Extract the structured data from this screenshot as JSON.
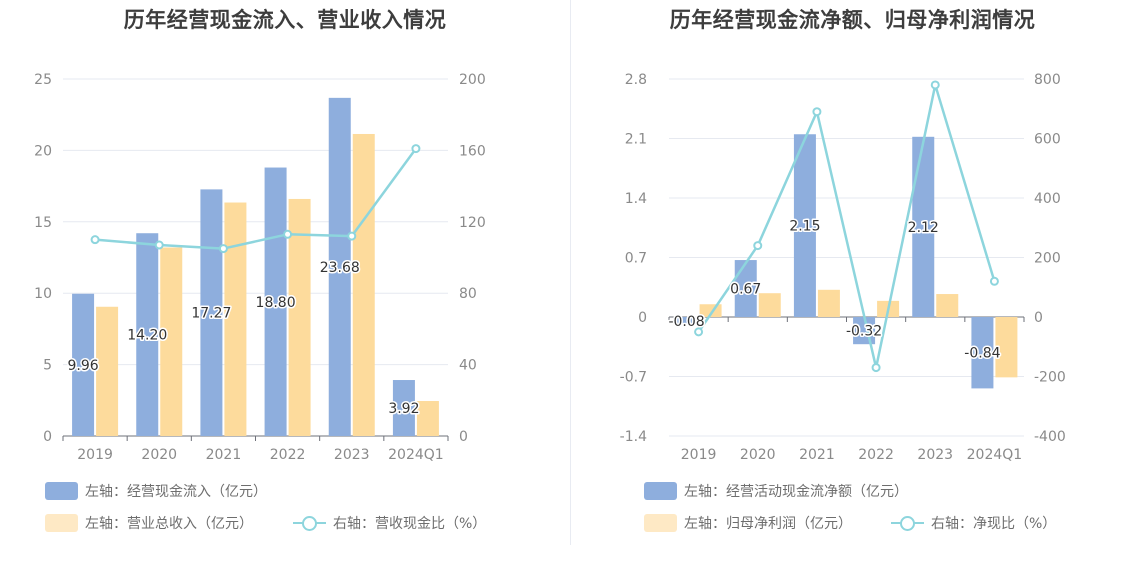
{
  "chart_data": [
    {
      "type": "bar",
      "title": "历年经营现金流入、营业收入情况",
      "categories": [
        "2019",
        "2020",
        "2021",
        "2022",
        "2023",
        "2024Q1"
      ],
      "left_axis": {
        "ticks": [
          "0",
          "5",
          "10",
          "15",
          "20",
          "25"
        ],
        "ylim": [
          0,
          25
        ]
      },
      "right_axis": {
        "ticks": [
          "0",
          "40",
          "80",
          "120",
          "160",
          "200"
        ],
        "ylim": [
          0,
          200
        ]
      },
      "series": [
        {
          "name": "左轴：经营现金流入（亿元）",
          "type": "bar",
          "axis": "left",
          "color": "#8eaedd",
          "values": [
            9.96,
            14.2,
            17.27,
            18.8,
            23.68,
            3.92
          ],
          "labels": [
            "9.96",
            "14.20",
            "17.27",
            "18.80",
            "23.68",
            "3.92"
          ]
        },
        {
          "name": "左轴：营业总收入（亿元）",
          "type": "bar",
          "axis": "left",
          "color": "#fddb9c",
          "values": [
            9.05,
            13.2,
            16.35,
            16.6,
            21.15,
            2.45
          ]
        },
        {
          "name": "右轴：营收现金比（%）",
          "type": "line",
          "axis": "right",
          "color": "#8dd5dd",
          "values": [
            110,
            107,
            105,
            113,
            112,
            161
          ]
        }
      ],
      "grid": true,
      "legend_position": "bottom"
    },
    {
      "type": "bar",
      "title": "历年经营现金流净额、归母净利润情况",
      "categories": [
        "2019",
        "2020",
        "2021",
        "2022",
        "2023",
        "2024Q1"
      ],
      "left_axis": {
        "ticks": [
          "-1.4",
          "-0.7",
          "0",
          "0.7",
          "1.4",
          "2.1",
          "2.8"
        ],
        "ylim": [
          -1.4,
          2.8
        ]
      },
      "right_axis": {
        "ticks": [
          "-400",
          "-200",
          "0",
          "200",
          "400",
          "600",
          "800"
        ],
        "ylim": [
          -400,
          800
        ]
      },
      "series": [
        {
          "name": "左轴：经营活动现金流净额（亿元）",
          "type": "bar",
          "axis": "left",
          "color": "#8eaedd",
          "values": [
            -0.08,
            0.67,
            2.15,
            -0.32,
            2.12,
            -0.84
          ],
          "labels": [
            "-0.08",
            "0.67",
            "2.15",
            "-0.32",
            "2.12",
            "-0.84"
          ]
        },
        {
          "name": "左轴：归母净利润（亿元）",
          "type": "bar",
          "axis": "left",
          "color": "#fddb9c",
          "values": [
            0.15,
            0.28,
            0.32,
            0.19,
            0.27,
            -0.71
          ]
        },
        {
          "name": "右轴：净现比（%）",
          "type": "line",
          "axis": "right",
          "color": "#8dd5dd",
          "values": [
            -50,
            240,
            690,
            -170,
            780,
            120
          ]
        }
      ],
      "grid": true,
      "legend_position": "bottom"
    }
  ]
}
